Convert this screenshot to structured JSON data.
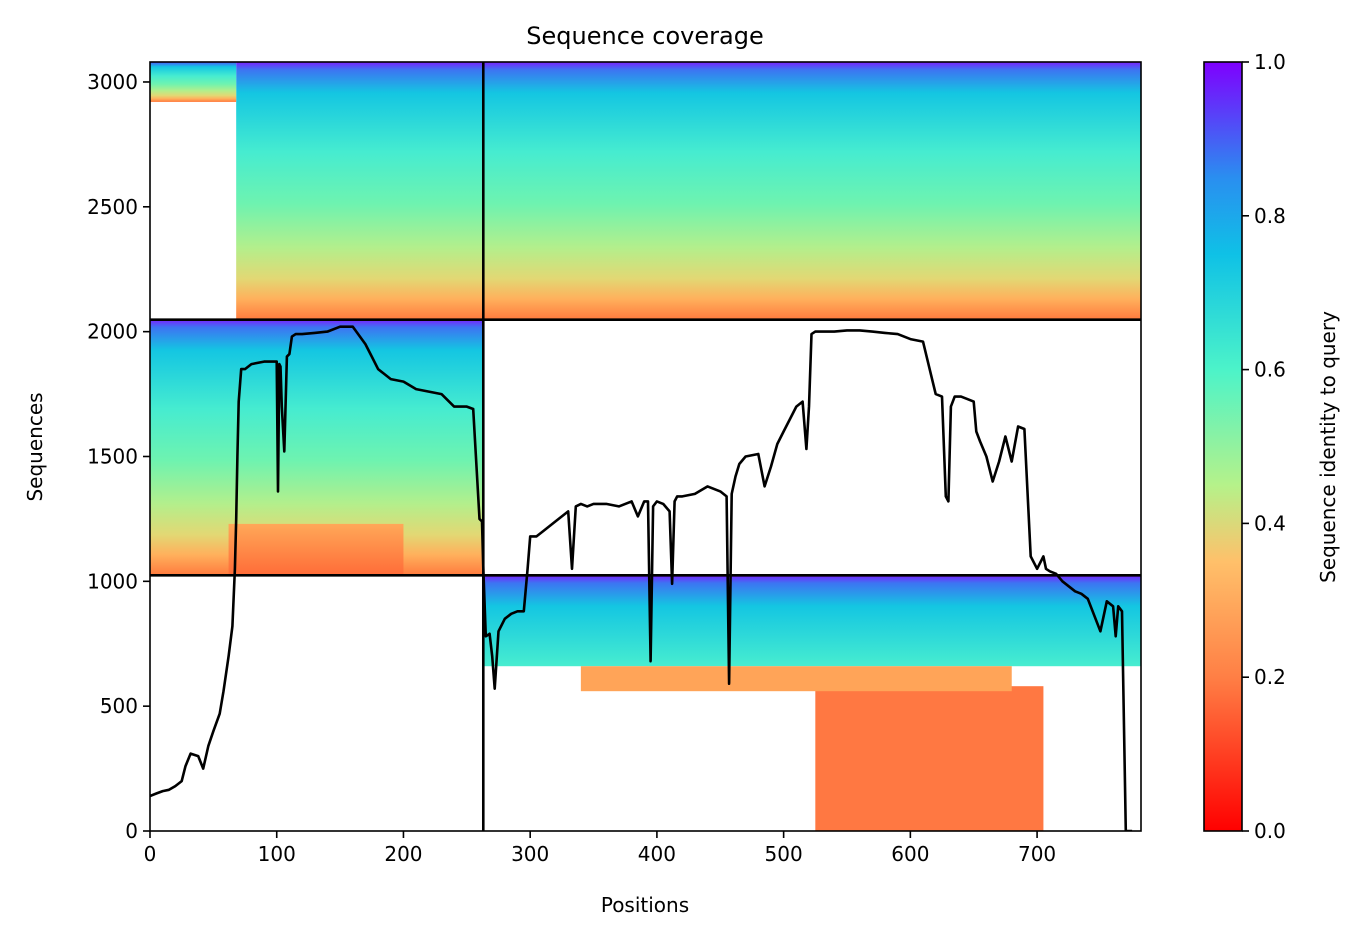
{
  "chart_data": {
    "type": "heatmap",
    "title": "Sequence coverage",
    "xlabel": "Positions",
    "ylabel": "Sequences",
    "xlim": [
      0,
      782
    ],
    "ylim": [
      0,
      3080
    ],
    "xticks": [
      0,
      100,
      200,
      300,
      400,
      500,
      600,
      700
    ],
    "yticks": [
      0,
      500,
      1000,
      1500,
      2000,
      2500,
      3000
    ],
    "colorbar": {
      "label": "Sequence identity to query",
      "range": [
        0,
        1
      ],
      "ticks": [
        "0.0",
        "0.2",
        "0.4",
        "0.6",
        "0.8",
        "1.0"
      ],
      "colormap": "rainbow_r"
    },
    "separators": {
      "x": [
        263
      ],
      "y": [
        1024,
        2048
      ]
    },
    "blocks": [
      {
        "name": "top-left",
        "x": [
          0,
          263
        ],
        "y": [
          2048,
          3080
        ]
      },
      {
        "name": "top-right",
        "x": [
          263,
          782
        ],
        "y": [
          2048,
          3080
        ]
      },
      {
        "name": "middle-left",
        "x": [
          0,
          263
        ],
        "y": [
          1024,
          2048
        ]
      },
      {
        "name": "bottom-right",
        "x": [
          263,
          782
        ],
        "y": [
          0,
          1024
        ]
      }
    ],
    "coverage_line": {
      "name": "coverage",
      "color": "#000000",
      "x": [
        0,
        5,
        10,
        15,
        20,
        25,
        28,
        32,
        38,
        42,
        46,
        50,
        55,
        58,
        62,
        65,
        67,
        68,
        69,
        70,
        72,
        75,
        80,
        90,
        100,
        101,
        102,
        103,
        104,
        106,
        108,
        110,
        112,
        115,
        120,
        130,
        140,
        150,
        160,
        170,
        175,
        180,
        190,
        200,
        210,
        220,
        230,
        240,
        245,
        250,
        255,
        260,
        262,
        263,
        265,
        268,
        270,
        272,
        275,
        280,
        285,
        290,
        295,
        298,
        300,
        305,
        310,
        320,
        330,
        333,
        336,
        340,
        345,
        350,
        360,
        370,
        380,
        385,
        390,
        393,
        395,
        397,
        400,
        405,
        410,
        412,
        414,
        416,
        420,
        430,
        440,
        450,
        455,
        457,
        459,
        462,
        465,
        470,
        480,
        485,
        490,
        495,
        500,
        505,
        510,
        515,
        518,
        520,
        522,
        525,
        530,
        540,
        550,
        560,
        570,
        580,
        590,
        600,
        610,
        620,
        625,
        628,
        630,
        632,
        635,
        640,
        645,
        650,
        652,
        655,
        660,
        665,
        670,
        675,
        680,
        685,
        690,
        695,
        700,
        705,
        707,
        710,
        715,
        720,
        730,
        735,
        740,
        750,
        755,
        760,
        762,
        764,
        767,
        770,
        775,
        780,
        781,
        782
      ],
      "y": [
        140,
        150,
        160,
        165,
        180,
        200,
        260,
        310,
        300,
        250,
        340,
        400,
        470,
        560,
        700,
        820,
        1050,
        1250,
        1500,
        1720,
        1850,
        1850,
        1870,
        1880,
        1880,
        1360,
        1870,
        1860,
        1700,
        1520,
        1900,
        1910,
        1980,
        1990,
        1990,
        1995,
        2000,
        2020,
        2020,
        1950,
        1900,
        1850,
        1810,
        1800,
        1770,
        1760,
        1750,
        1700,
        1700,
        1700,
        1690,
        1250,
        1240,
        1050,
        780,
        790,
        700,
        570,
        800,
        850,
        870,
        880,
        880,
        1050,
        1180,
        1180,
        1200,
        1240,
        1280,
        1050,
        1300,
        1310,
        1300,
        1310,
        1310,
        1300,
        1320,
        1260,
        1320,
        1320,
        680,
        1300,
        1320,
        1310,
        1280,
        990,
        1320,
        1340,
        1340,
        1350,
        1380,
        1360,
        1340,
        590,
        1350,
        1420,
        1470,
        1500,
        1510,
        1380,
        1460,
        1550,
        1600,
        1650,
        1700,
        1720,
        1530,
        1700,
        1990,
        2000,
        2000,
        2000,
        2005,
        2005,
        2000,
        1995,
        1990,
        1970,
        1960,
        1750,
        1740,
        1340,
        1320,
        1700,
        1740,
        1740,
        1730,
        1720,
        1600,
        1560,
        1500,
        1400,
        1480,
        1580,
        1480,
        1620,
        1610,
        1100,
        1050,
        1100,
        1050,
        1040,
        1030,
        1000,
        960,
        950,
        930,
        800,
        920,
        900,
        780,
        900,
        880,
        0,
        0
      ]
    }
  }
}
